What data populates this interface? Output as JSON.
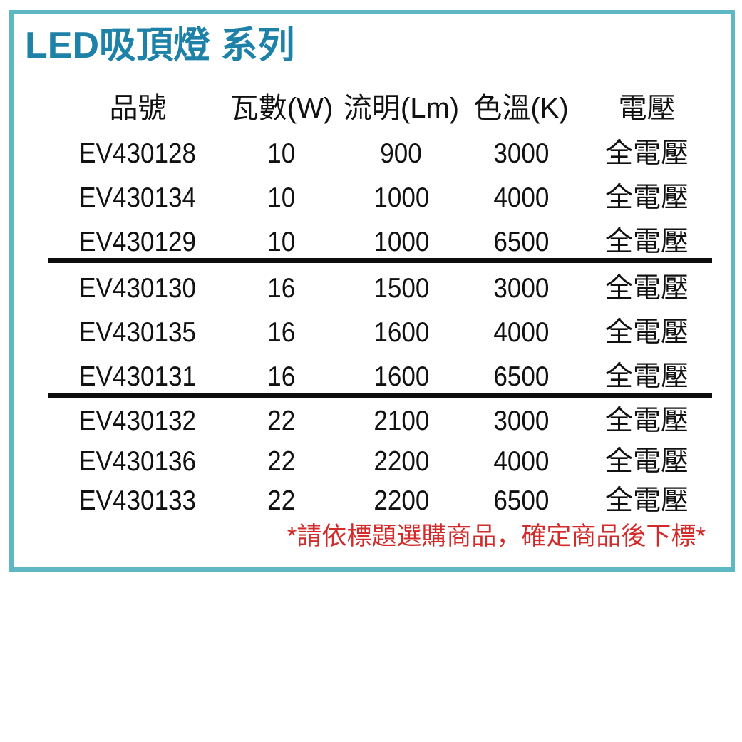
{
  "title": "LED吸頂燈 系列",
  "table": {
    "headers": [
      "品號",
      "瓦數(W)",
      "流明(Lm)",
      "色溫(K)",
      "電壓"
    ],
    "groups": [
      [
        [
          "EV430128",
          "10",
          "900",
          "3000",
          "全電壓"
        ],
        [
          "EV430134",
          "10",
          "1000",
          "4000",
          "全電壓"
        ],
        [
          "EV430129",
          "10",
          "1000",
          "6500",
          "全電壓"
        ]
      ],
      [
        [
          "EV430130",
          "16",
          "1500",
          "3000",
          "全電壓"
        ],
        [
          "EV430135",
          "16",
          "1600",
          "4000",
          "全電壓"
        ],
        [
          "EV430131",
          "16",
          "1600",
          "6500",
          "全電壓"
        ]
      ],
      [
        [
          "EV430132",
          "22",
          "2100",
          "3000",
          "全電壓"
        ],
        [
          "EV430136",
          "22",
          "2200",
          "4000",
          "全電壓"
        ],
        [
          "EV430133",
          "22",
          "2200",
          "6500",
          "全電壓"
        ]
      ]
    ]
  },
  "note": "*請依標題選購商品，確定商品後下標*",
  "colors": {
    "border": "#5db8c3",
    "title": "#1e82a8",
    "note_red": "#d22b2b",
    "divider": "#0d0d0d",
    "text": "#111111"
  }
}
